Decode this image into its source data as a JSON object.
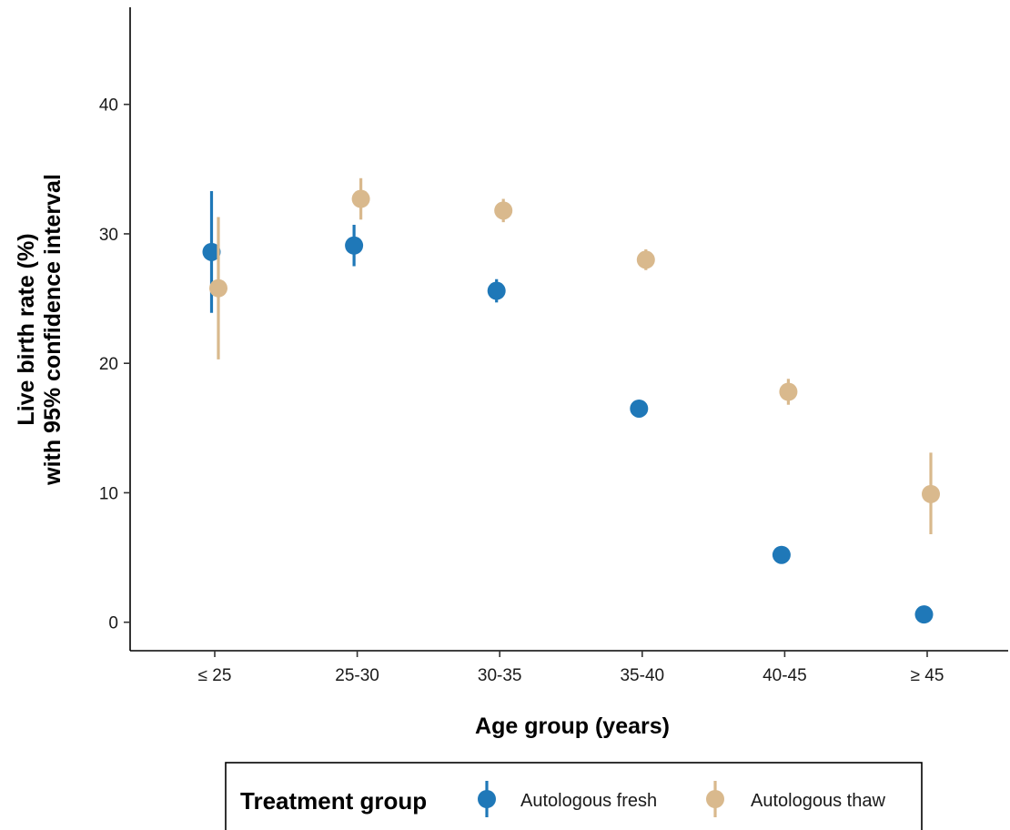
{
  "chart_data": {
    "type": "scatter",
    "title": "",
    "xlabel": "Age group (years)",
    "ylabel_line1": "Live birth rate (%)",
    "ylabel_line2": "with 95% confidence interval",
    "categories": [
      "≤ 25",
      "25-30",
      "30-35",
      "35-40",
      "40-45",
      "≥ 45"
    ],
    "y_ticks": [
      0,
      10,
      20,
      30,
      40
    ],
    "ylim": [
      -2.2,
      47.5
    ],
    "grid": false,
    "legend": {
      "title": "Treatment group",
      "position": "bottom"
    },
    "series": [
      {
        "name": "Autologous fresh",
        "color": "#1f78b8",
        "values": [
          28.6,
          29.1,
          25.6,
          16.5,
          5.2,
          0.6
        ],
        "ci_low": [
          23.9,
          27.5,
          24.7,
          16.2,
          5.0,
          0.4
        ],
        "ci_high": [
          33.3,
          30.7,
          26.5,
          16.8,
          5.4,
          0.8
        ]
      },
      {
        "name": "Autologous thaw",
        "color": "#d9b98d",
        "values": [
          25.8,
          32.7,
          31.8,
          28.0,
          17.8,
          9.9
        ],
        "ci_low": [
          20.3,
          31.1,
          30.9,
          27.2,
          16.8,
          6.8
        ],
        "ci_high": [
          31.3,
          34.3,
          32.7,
          28.8,
          18.8,
          13.1
        ]
      }
    ]
  }
}
